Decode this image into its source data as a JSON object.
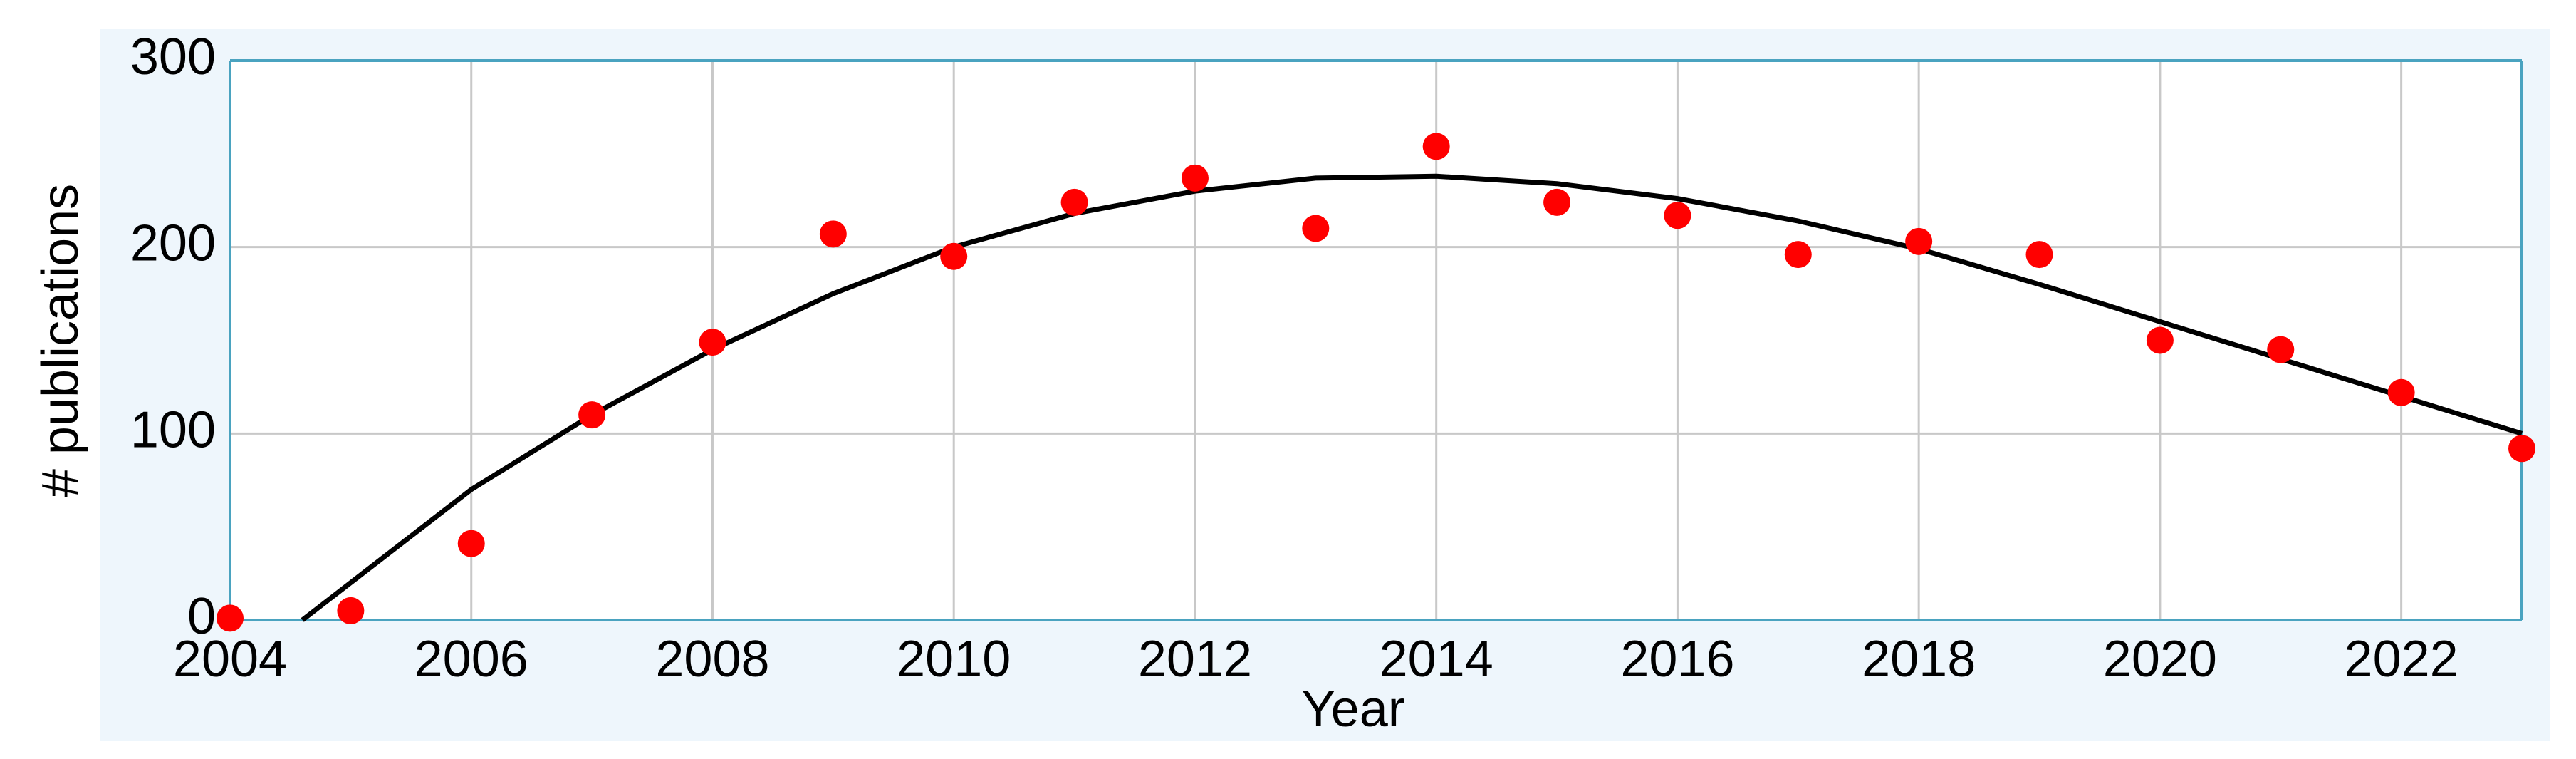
{
  "chart_data": {
    "type": "scatter",
    "x_label": "Year",
    "y_label": "# publications",
    "x": [
      2004,
      2005,
      2006,
      2007,
      2008,
      2009,
      2010,
      2011,
      2012,
      2013,
      2014,
      2015,
      2016,
      2017,
      2018,
      2019,
      2020,
      2021,
      2022,
      2023
    ],
    "series": [
      {
        "color": "#ff0000",
        "values": [
          1,
          5,
          41,
          110,
          149,
          207,
          195,
          224,
          237,
          210,
          254,
          224,
          217,
          196,
          203,
          196,
          150,
          145,
          122,
          92
        ]
      }
    ],
    "curve": {
      "color": "#000000",
      "x": [
        2004.6,
        2005,
        2006,
        2007,
        2008,
        2009,
        2010,
        2011,
        2012,
        2013,
        2014,
        2015,
        2016,
        2017,
        2018,
        2019,
        2020,
        2021,
        2022,
        2023
      ],
      "values": [
        0,
        20,
        70,
        110,
        145,
        175,
        200,
        218,
        230,
        237,
        238,
        234,
        226,
        214,
        199,
        180,
        160,
        140,
        120,
        100
      ]
    },
    "xlim": [
      2004,
      2023
    ],
    "xticks": [
      2004,
      2006,
      2008,
      2010,
      2012,
      2014,
      2016,
      2018,
      2020,
      2022
    ],
    "ylim": [
      0,
      300
    ],
    "yticks": [
      0,
      100,
      200,
      300
    ],
    "grid": true
  }
}
